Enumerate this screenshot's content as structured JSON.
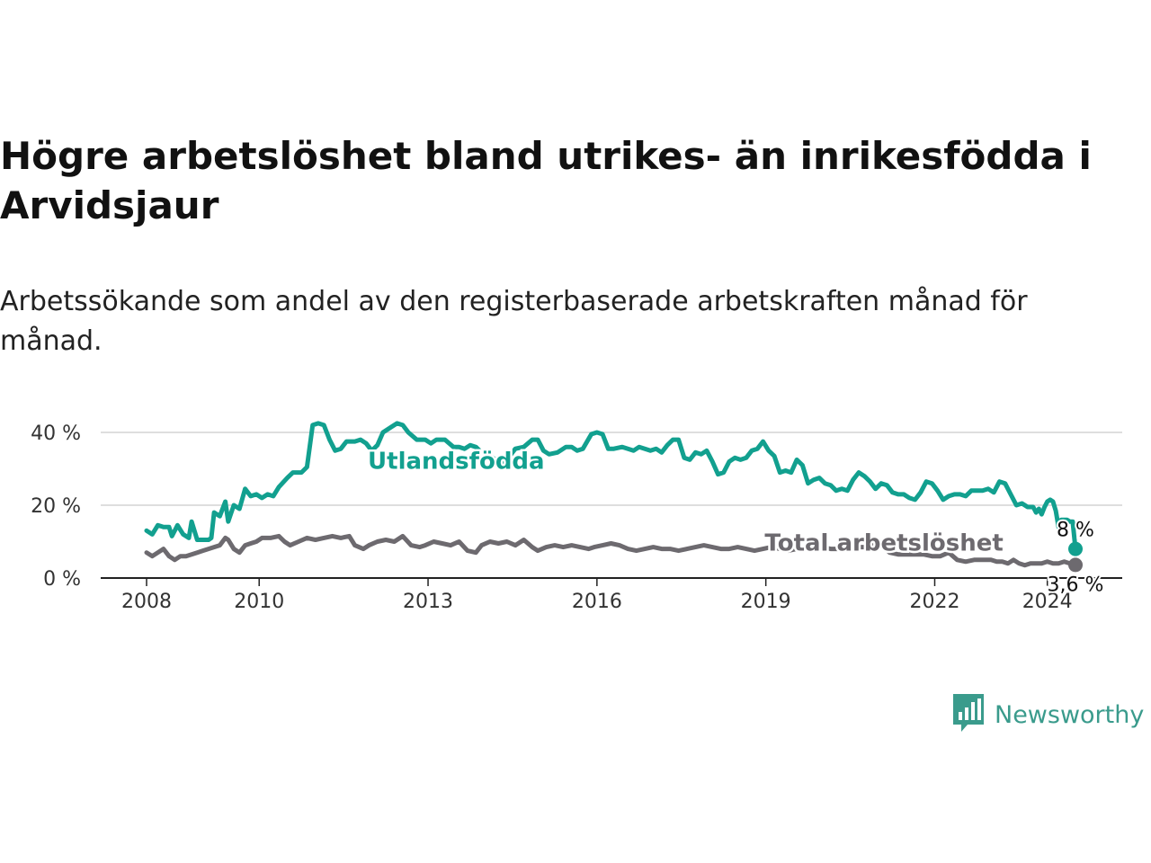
{
  "title": "Högre arbetslöshet bland utrikes- än inrikesfödda i Arvidsjaur",
  "subtitle": "Arbetssökande som andel av den registerbaserade arbetskraften månad för månad.",
  "brand": {
    "name": "Newsworthy",
    "icon": "newsworthy-bar-chart-logo-icon",
    "color": "#3a9b8c"
  },
  "chart_data": {
    "type": "line",
    "x_range": [
      2008.0,
      2024.5
    ],
    "ylim": [
      0,
      45
    ],
    "grid": true,
    "x_ticks": [
      {
        "value": 2008,
        "label": "2008"
      },
      {
        "value": 2010,
        "label": "2010"
      },
      {
        "value": 2013,
        "label": "2013"
      },
      {
        "value": 2016,
        "label": "2016"
      },
      {
        "value": 2019,
        "label": "2019"
      },
      {
        "value": 2022,
        "label": "2022"
      },
      {
        "value": 2024,
        "label": "2024"
      }
    ],
    "y_ticks": [
      {
        "value": 0,
        "label": "0 %"
      },
      {
        "value": 20,
        "label": "20 %"
      },
      {
        "value": 40,
        "label": "40 %"
      }
    ],
    "series": [
      {
        "name": "Utlandsfödda",
        "color": "#12a08f",
        "end_label": "8 %",
        "label_position": [
          2013.5,
          30
        ],
        "points": [
          [
            2008.0,
            13.0
          ],
          [
            2008.1,
            12.0
          ],
          [
            2008.2,
            14.5
          ],
          [
            2008.3,
            14.0
          ],
          [
            2008.4,
            14.0
          ],
          [
            2008.45,
            11.5
          ],
          [
            2008.55,
            14.5
          ],
          [
            2008.65,
            12.0
          ],
          [
            2008.75,
            11.0
          ],
          [
            2008.8,
            15.5
          ],
          [
            2008.9,
            10.5
          ],
          [
            2009.05,
            10.5
          ],
          [
            2009.1,
            10.5
          ],
          [
            2009.15,
            11.0
          ],
          [
            2009.2,
            18.0
          ],
          [
            2009.3,
            17.0
          ],
          [
            2009.4,
            21.0
          ],
          [
            2009.45,
            15.5
          ],
          [
            2009.55,
            20.0
          ],
          [
            2009.65,
            19.0
          ],
          [
            2009.75,
            24.5
          ],
          [
            2009.85,
            22.5
          ],
          [
            2009.95,
            23.0
          ],
          [
            2010.05,
            22.0
          ],
          [
            2010.15,
            23.0
          ],
          [
            2010.25,
            22.5
          ],
          [
            2010.35,
            25.0
          ],
          [
            2010.5,
            27.5
          ],
          [
            2010.6,
            29.0
          ],
          [
            2010.75,
            29.0
          ],
          [
            2010.85,
            30.5
          ],
          [
            2010.95,
            42.0
          ],
          [
            2011.05,
            42.5
          ],
          [
            2011.15,
            42.0
          ],
          [
            2011.25,
            38.0
          ],
          [
            2011.35,
            35.0
          ],
          [
            2011.45,
            35.5
          ],
          [
            2011.55,
            37.5
          ],
          [
            2011.7,
            37.5
          ],
          [
            2011.8,
            38.0
          ],
          [
            2011.9,
            37.0
          ],
          [
            2012.0,
            35.0
          ],
          [
            2012.1,
            36.5
          ],
          [
            2012.2,
            40.0
          ],
          [
            2012.35,
            41.5
          ],
          [
            2012.45,
            42.5
          ],
          [
            2012.55,
            42.0
          ],
          [
            2012.65,
            40.0
          ],
          [
            2012.8,
            38.0
          ],
          [
            2012.95,
            38.0
          ],
          [
            2013.05,
            37.0
          ],
          [
            2013.15,
            38.0
          ],
          [
            2013.3,
            38.0
          ],
          [
            2013.45,
            36.0
          ],
          [
            2013.55,
            36.0
          ],
          [
            2013.65,
            35.5
          ],
          [
            2013.75,
            36.5
          ],
          [
            2013.85,
            36.0
          ],
          [
            2013.95,
            34.5
          ],
          [
            2014.1,
            33.5
          ],
          [
            2014.25,
            32.0
          ],
          [
            2014.35,
            32.0
          ],
          [
            2014.45,
            33.5
          ],
          [
            2014.55,
            35.5
          ],
          [
            2014.7,
            36.0
          ],
          [
            2014.85,
            38.0
          ],
          [
            2014.95,
            38.0
          ],
          [
            2015.05,
            35.0
          ],
          [
            2015.15,
            34.0
          ],
          [
            2015.3,
            34.5
          ],
          [
            2015.45,
            36.0
          ],
          [
            2015.55,
            36.0
          ],
          [
            2015.65,
            35.0
          ],
          [
            2015.75,
            35.5
          ],
          [
            2015.9,
            39.5
          ],
          [
            2016.0,
            40.0
          ],
          [
            2016.1,
            39.5
          ],
          [
            2016.2,
            35.5
          ],
          [
            2016.3,
            35.5
          ],
          [
            2016.45,
            36.0
          ],
          [
            2016.55,
            35.5
          ],
          [
            2016.65,
            35.0
          ],
          [
            2016.75,
            36.0
          ],
          [
            2016.85,
            35.5
          ],
          [
            2016.95,
            35.0
          ],
          [
            2017.05,
            35.5
          ],
          [
            2017.15,
            34.5
          ],
          [
            2017.25,
            36.5
          ],
          [
            2017.35,
            38.0
          ],
          [
            2017.45,
            38.0
          ],
          [
            2017.55,
            33.0
          ],
          [
            2017.65,
            32.5
          ],
          [
            2017.75,
            34.5
          ],
          [
            2017.85,
            34.0
          ],
          [
            2017.95,
            35.0
          ],
          [
            2018.05,
            32.0
          ],
          [
            2018.15,
            28.5
          ],
          [
            2018.25,
            29.0
          ],
          [
            2018.35,
            32.0
          ],
          [
            2018.45,
            33.0
          ],
          [
            2018.55,
            32.5
          ],
          [
            2018.65,
            33.0
          ],
          [
            2018.75,
            35.0
          ],
          [
            2018.85,
            35.5
          ],
          [
            2018.95,
            37.5
          ],
          [
            2019.05,
            35.0
          ],
          [
            2019.15,
            33.5
          ],
          [
            2019.25,
            29.0
          ],
          [
            2019.35,
            29.5
          ],
          [
            2019.45,
            29.0
          ],
          [
            2019.55,
            32.5
          ],
          [
            2019.65,
            31.0
          ],
          [
            2019.75,
            26.0
          ],
          [
            2019.85,
            27.0
          ],
          [
            2019.95,
            27.5
          ],
          [
            2020.05,
            26.0
          ],
          [
            2020.15,
            25.5
          ],
          [
            2020.25,
            24.0
          ],
          [
            2020.35,
            24.5
          ],
          [
            2020.45,
            24.0
          ],
          [
            2020.55,
            27.0
          ],
          [
            2020.65,
            29.0
          ],
          [
            2020.75,
            28.0
          ],
          [
            2020.85,
            26.5
          ],
          [
            2020.95,
            24.5
          ],
          [
            2021.05,
            26.0
          ],
          [
            2021.15,
            25.5
          ],
          [
            2021.25,
            23.5
          ],
          [
            2021.35,
            23.0
          ],
          [
            2021.45,
            23.0
          ],
          [
            2021.55,
            22.0
          ],
          [
            2021.65,
            21.5
          ],
          [
            2021.75,
            23.5
          ],
          [
            2021.85,
            26.5
          ],
          [
            2021.95,
            26.0
          ],
          [
            2022.05,
            24.0
          ],
          [
            2022.15,
            21.5
          ],
          [
            2022.25,
            22.5
          ],
          [
            2022.35,
            23.0
          ],
          [
            2022.45,
            23.0
          ],
          [
            2022.55,
            22.5
          ],
          [
            2022.65,
            24.0
          ],
          [
            2022.75,
            24.0
          ],
          [
            2022.85,
            24.0
          ],
          [
            2022.95,
            24.5
          ],
          [
            2023.05,
            23.5
          ],
          [
            2023.15,
            26.5
          ],
          [
            2023.25,
            26.0
          ],
          [
            2023.35,
            23.0
          ],
          [
            2023.45,
            20.0
          ],
          [
            2023.55,
            20.5
          ],
          [
            2023.65,
            19.5
          ],
          [
            2023.75,
            19.5
          ],
          [
            2023.8,
            18.0
          ],
          [
            2023.85,
            19.0
          ],
          [
            2023.9,
            17.5
          ],
          [
            2023.95,
            19.5
          ],
          [
            2024.0,
            21.0
          ],
          [
            2024.05,
            21.5
          ],
          [
            2024.1,
            21.0
          ],
          [
            2024.15,
            18.5
          ],
          [
            2024.2,
            14.0
          ],
          [
            2024.25,
            16.0
          ],
          [
            2024.3,
            16.0
          ],
          [
            2024.35,
            16.0
          ],
          [
            2024.4,
            15.5
          ],
          [
            2024.45,
            15.5
          ],
          [
            2024.5,
            8.0
          ]
        ]
      },
      {
        "name": "Total arbetslöshet",
        "color": "#6d6a6f",
        "end_label": "3,6 %",
        "label_position": [
          2021.1,
          7.5
        ],
        "points": [
          [
            2008.0,
            7.0
          ],
          [
            2008.1,
            6.0
          ],
          [
            2008.2,
            7.0
          ],
          [
            2008.3,
            8.0
          ],
          [
            2008.4,
            6.0
          ],
          [
            2008.5,
            5.0
          ],
          [
            2008.6,
            6.0
          ],
          [
            2008.7,
            6.0
          ],
          [
            2008.8,
            6.5
          ],
          [
            2008.9,
            7.0
          ],
          [
            2009.0,
            7.5
          ],
          [
            2009.1,
            8.0
          ],
          [
            2009.2,
            8.5
          ],
          [
            2009.3,
            9.0
          ],
          [
            2009.4,
            11.0
          ],
          [
            2009.45,
            10.5
          ],
          [
            2009.55,
            8.0
          ],
          [
            2009.65,
            7.0
          ],
          [
            2009.75,
            9.0
          ],
          [
            2009.85,
            9.5
          ],
          [
            2009.95,
            10.0
          ],
          [
            2010.05,
            11.0
          ],
          [
            2010.2,
            11.0
          ],
          [
            2010.35,
            11.5
          ],
          [
            2010.45,
            10.0
          ],
          [
            2010.55,
            9.0
          ],
          [
            2010.7,
            10.0
          ],
          [
            2010.85,
            11.0
          ],
          [
            2011.0,
            10.5
          ],
          [
            2011.15,
            11.0
          ],
          [
            2011.3,
            11.5
          ],
          [
            2011.45,
            11.0
          ],
          [
            2011.6,
            11.5
          ],
          [
            2011.7,
            9.0
          ],
          [
            2011.85,
            8.0
          ],
          [
            2011.95,
            9.0
          ],
          [
            2012.1,
            10.0
          ],
          [
            2012.25,
            10.5
          ],
          [
            2012.4,
            10.0
          ],
          [
            2012.55,
            11.5
          ],
          [
            2012.7,
            9.0
          ],
          [
            2012.85,
            8.5
          ],
          [
            2012.95,
            9.0
          ],
          [
            2013.1,
            10.0
          ],
          [
            2013.25,
            9.5
          ],
          [
            2013.4,
            9.0
          ],
          [
            2013.55,
            10.0
          ],
          [
            2013.7,
            7.5
          ],
          [
            2013.85,
            7.0
          ],
          [
            2013.95,
            9.0
          ],
          [
            2014.1,
            10.0
          ],
          [
            2014.25,
            9.5
          ],
          [
            2014.4,
            10.0
          ],
          [
            2014.55,
            9.0
          ],
          [
            2014.7,
            10.5
          ],
          [
            2014.85,
            8.5
          ],
          [
            2014.95,
            7.5
          ],
          [
            2015.1,
            8.5
          ],
          [
            2015.25,
            9.0
          ],
          [
            2015.4,
            8.5
          ],
          [
            2015.55,
            9.0
          ],
          [
            2015.7,
            8.5
          ],
          [
            2015.85,
            8.0
          ],
          [
            2015.95,
            8.5
          ],
          [
            2016.1,
            9.0
          ],
          [
            2016.25,
            9.5
          ],
          [
            2016.4,
            9.0
          ],
          [
            2016.55,
            8.0
          ],
          [
            2016.7,
            7.5
          ],
          [
            2016.85,
            8.0
          ],
          [
            2017.0,
            8.5
          ],
          [
            2017.15,
            8.0
          ],
          [
            2017.3,
            8.0
          ],
          [
            2017.45,
            7.5
          ],
          [
            2017.6,
            8.0
          ],
          [
            2017.75,
            8.5
          ],
          [
            2017.9,
            9.0
          ],
          [
            2018.05,
            8.5
          ],
          [
            2018.2,
            8.0
          ],
          [
            2018.35,
            8.0
          ],
          [
            2018.5,
            8.5
          ],
          [
            2018.65,
            8.0
          ],
          [
            2018.8,
            7.5
          ],
          [
            2018.95,
            8.0
          ],
          [
            2019.1,
            8.5
          ],
          [
            2019.25,
            8.0
          ],
          [
            2019.4,
            7.5
          ],
          [
            2019.55,
            8.0
          ],
          [
            2019.7,
            8.0
          ],
          [
            2019.85,
            8.5
          ],
          [
            2020.0,
            8.5
          ],
          [
            2020.15,
            8.0
          ],
          [
            2020.3,
            8.0
          ],
          [
            2020.45,
            8.0
          ],
          [
            2020.6,
            8.5
          ],
          [
            2020.75,
            8.5
          ],
          [
            2020.9,
            9.0
          ],
          [
            2021.05,
            9.0
          ],
          [
            2021.2,
            7.0
          ],
          [
            2021.35,
            6.5
          ],
          [
            2021.5,
            6.5
          ],
          [
            2021.65,
            6.5
          ],
          [
            2021.8,
            6.5
          ],
          [
            2021.95,
            6.0
          ],
          [
            2022.1,
            6.0
          ],
          [
            2022.25,
            7.0
          ],
          [
            2022.4,
            5.0
          ],
          [
            2022.55,
            4.5
          ],
          [
            2022.7,
            5.0
          ],
          [
            2022.85,
            5.0
          ],
          [
            2023.0,
            5.0
          ],
          [
            2023.1,
            4.5
          ],
          [
            2023.2,
            4.5
          ],
          [
            2023.3,
            4.0
          ],
          [
            2023.4,
            5.0
          ],
          [
            2023.5,
            4.0
          ],
          [
            2023.6,
            3.5
          ],
          [
            2023.7,
            4.0
          ],
          [
            2023.8,
            4.0
          ],
          [
            2023.9,
            4.0
          ],
          [
            2024.0,
            4.5
          ],
          [
            2024.1,
            4.0
          ],
          [
            2024.2,
            4.0
          ],
          [
            2024.3,
            4.5
          ],
          [
            2024.4,
            4.0
          ],
          [
            2024.5,
            3.6
          ]
        ]
      }
    ]
  }
}
